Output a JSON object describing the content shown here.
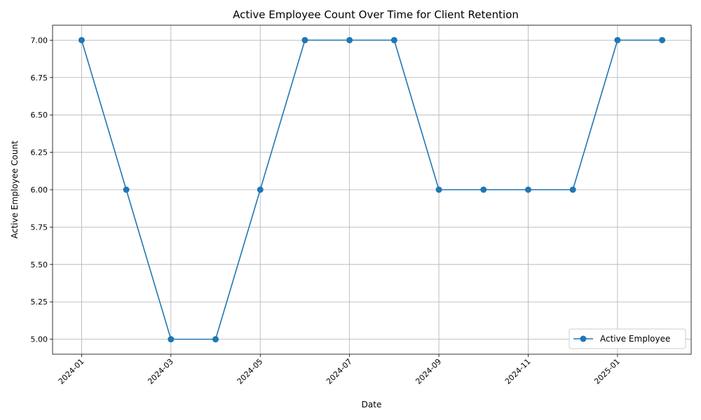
{
  "chart_data": {
    "type": "line",
    "title": "Active Employee Count Over Time for Client Retention",
    "xlabel": "Date",
    "ylabel": "Active Employee Count",
    "x": [
      "2024-01",
      "2024-02",
      "2024-03",
      "2024-04",
      "2024-05",
      "2024-06",
      "2024-07",
      "2024-08",
      "2024-09",
      "2024-10",
      "2024-11",
      "2024-12",
      "2025-01",
      "2025-02"
    ],
    "series": [
      {
        "name": "Active Employee",
        "values": [
          7,
          6,
          5,
          5,
          6,
          7,
          7,
          7,
          6,
          6,
          6,
          6,
          7,
          7
        ]
      }
    ],
    "ylim": [
      4.9,
      7.1
    ],
    "yticks": [
      "5.00",
      "5.25",
      "5.50",
      "5.75",
      "6.00",
      "6.25",
      "6.50",
      "6.75",
      "7.00"
    ],
    "xticks": [
      "2024-01",
      "2024-03",
      "2024-05",
      "2024-07",
      "2024-09",
      "2024-11",
      "2025-01"
    ],
    "grid": true,
    "legend_position": "lower-right",
    "colors": {
      "line": "#1f77b4",
      "grid": "#b0b0b0",
      "axis": "#000000"
    }
  }
}
